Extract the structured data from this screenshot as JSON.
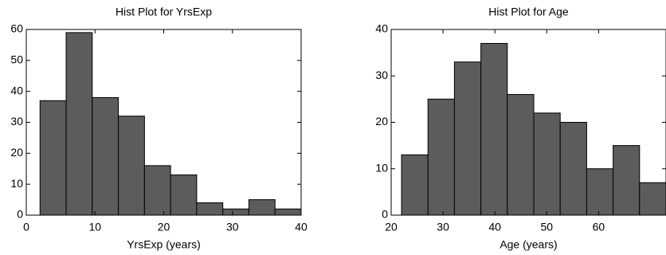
{
  "chart_data": [
    {
      "type": "histogram",
      "title": "Hist Plot for YrsExp",
      "x_label": "YrsExp (years)",
      "bins": [
        2,
        5.8,
        9.6,
        13.4,
        17.2,
        21,
        24.8,
        28.6,
        32.4,
        36.2,
        40
      ],
      "values": [
        37,
        59,
        38,
        32,
        16,
        13,
        4,
        2,
        5,
        2
      ],
      "color": "#5c5c5c",
      "xlim": [
        0,
        40
      ],
      "xticks": [
        0,
        10,
        20,
        30,
        40
      ],
      "ylim": [
        0,
        60
      ],
      "yticks": [
        0,
        10,
        20,
        30,
        40,
        50,
        60
      ]
    },
    {
      "type": "histogram",
      "title": "Hist Plot for Age",
      "x_label": "Age (years)",
      "bins": [
        22,
        27.1,
        32.2,
        37.3,
        42.4,
        47.5,
        52.6,
        57.7,
        62.8,
        67.9,
        73
      ],
      "values": [
        13,
        25,
        33,
        37,
        26,
        22,
        20,
        10,
        15,
        7
      ],
      "color": "#5c5c5c",
      "xlim": [
        20,
        73
      ],
      "xticks": [
        20,
        30,
        40,
        50,
        60
      ],
      "ylim": [
        0,
        40
      ],
      "yticks": [
        0,
        10,
        20,
        30,
        40
      ]
    }
  ]
}
